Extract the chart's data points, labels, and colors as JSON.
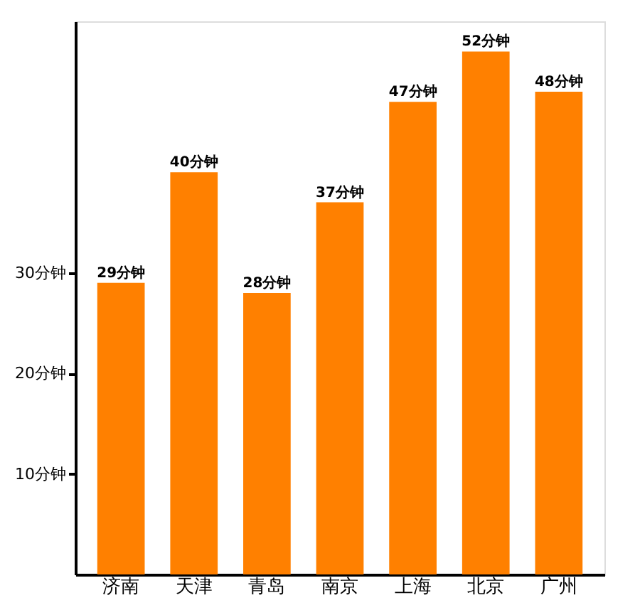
{
  "chart_data": {
    "type": "bar",
    "categories": [
      "济南",
      "天津",
      "青岛",
      "南京",
      "上海",
      "北京",
      "广州"
    ],
    "values": [
      29,
      40,
      28,
      37,
      47,
      52,
      48
    ],
    "value_labels": [
      "29分钟",
      "40分钟",
      "28分钟",
      "37分钟",
      "47分钟",
      "52分钟",
      "48分钟"
    ],
    "color": "#ff8000",
    "ylim": [
      0,
      55
    ],
    "yticks": [
      {
        "value": 10,
        "label": "10分钟"
      },
      {
        "value": 20,
        "label": "20分钟"
      },
      {
        "value": 30,
        "label": "30分钟"
      }
    ],
    "grid": false
  }
}
